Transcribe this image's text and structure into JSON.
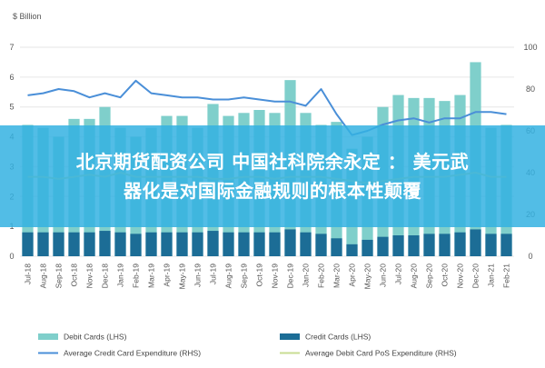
{
  "overlay": {
    "line1": "北京期货配资公司 中国社科院余永定 ： 美元武",
    "line2": "器化是对国际金融规则的根本性颠覆"
  },
  "colors": {
    "debit": "#7fcfcb",
    "credit": "#1c6d96",
    "avg_credit": "#4a8fd8",
    "avg_debit_pos": "#c8dc93",
    "overlay": "#34b1e2",
    "grid": "#e6e6e6",
    "axis_text": "#555555"
  },
  "chart_data": {
    "type": "bar",
    "unit_label": "$ Billion",
    "categories": [
      "Jul-18",
      "Aug-18",
      "Sep-18",
      "Oct-18",
      "Nov-18",
      "Dec-18",
      "Jan-19",
      "Feb-19",
      "Mar-19",
      "Apr-19",
      "May-19",
      "Jun-19",
      "Jul-19",
      "Aug-19",
      "Sep-19",
      "Oct-19",
      "Nov-19",
      "Dec-19",
      "Jan-20",
      "Feb-20",
      "Mar-20",
      "Apr-20",
      "May-20",
      "Jun-20",
      "Jul-20",
      "Aug-20",
      "Sep-20",
      "Oct-20",
      "Nov-20",
      "Dec-20",
      "Jan-21",
      "Feb-21"
    ],
    "left_axis": {
      "min": 0,
      "max": 7,
      "ticks": [
        0,
        1,
        2,
        3,
        4,
        5,
        6,
        7
      ]
    },
    "right_axis": {
      "min": 0,
      "max": 100,
      "ticks": [
        0,
        20,
        40,
        60,
        80,
        100
      ]
    },
    "series": [
      {
        "name": "Debit Cards (LHS)",
        "kind": "bar",
        "axis": "left",
        "values": [
          4.4,
          4.3,
          4.0,
          4.6,
          4.6,
          5.0,
          4.3,
          4.0,
          4.3,
          4.7,
          4.7,
          4.3,
          5.1,
          4.7,
          4.8,
          4.9,
          4.8,
          5.9,
          4.8,
          4.4,
          4.5,
          3.6,
          4.0,
          5.0,
          5.4,
          5.3,
          5.3,
          5.2,
          5.4,
          6.5,
          4.3,
          4.4
        ]
      },
      {
        "name": "Credit Cards (LHS)",
        "kind": "bar",
        "axis": "left",
        "values": [
          0.8,
          0.8,
          0.8,
          0.8,
          0.8,
          0.85,
          0.8,
          0.75,
          0.8,
          0.8,
          0.8,
          0.8,
          0.85,
          0.8,
          0.8,
          0.8,
          0.8,
          0.9,
          0.8,
          0.75,
          0.6,
          0.4,
          0.55,
          0.65,
          0.7,
          0.7,
          0.75,
          0.75,
          0.8,
          0.9,
          0.75,
          0.75
        ]
      },
      {
        "name": "Average Credit Card Expenditure (RHS)",
        "kind": "line",
        "axis": "right",
        "values": [
          77,
          78,
          80,
          79,
          76,
          78,
          76,
          84,
          78,
          77,
          76,
          76,
          75,
          75,
          76,
          75,
          74,
          74,
          72,
          80,
          68,
          58,
          60,
          63,
          65,
          66,
          64,
          66,
          66,
          69,
          69,
          68
        ]
      },
      {
        "name": "Average Debit Card PoS Expenditure (RHS)",
        "kind": "line",
        "axis": "right",
        "values": [
          38,
          38,
          37,
          38,
          39,
          38,
          40,
          38,
          38,
          38,
          38,
          38,
          37,
          37,
          38,
          38,
          37,
          38,
          38,
          38,
          37,
          36,
          35,
          36,
          37,
          38,
          38,
          38,
          39,
          40,
          38,
          38
        ]
      }
    ],
    "grid": true,
    "legend_position": "bottom"
  }
}
